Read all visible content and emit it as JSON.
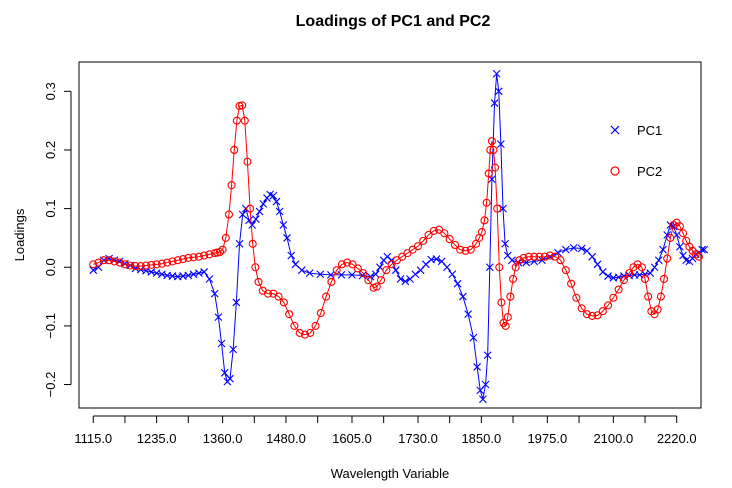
{
  "chart_data": {
    "type": "line",
    "title": "Loadings of PC1 and PC2",
    "xlabel": "Wavelength Variable",
    "ylabel": "Loadings",
    "xlim": [
      1088,
      2266
    ],
    "ylim": [
      -0.24,
      0.35
    ],
    "x_ticks": [
      1115,
      1175,
      1235,
      1295,
      1360,
      1420,
      1480,
      1540,
      1605,
      1665,
      1730,
      1790,
      1850,
      1910,
      1975,
      2035,
      2100,
      2160,
      2220
    ],
    "x_tick_labels": [
      "1115.0",
      "",
      "1235.0",
      "",
      "1360.0",
      "",
      "1480.0",
      "",
      "1605.0",
      "",
      "1730.0",
      "",
      "1850.0",
      "",
      "1975.0",
      "",
      "2100.0",
      "",
      "2220.0"
    ],
    "y_ticks": [
      -0.2,
      -0.1,
      0.0,
      0.1,
      0.2,
      0.3
    ],
    "y_tick_labels": [
      "−0.2",
      "−0.1",
      "0.0",
      "0.1",
      "0.2",
      "0.3"
    ],
    "legend": {
      "position": "top-right",
      "entries": [
        "PC1",
        "PC2"
      ]
    },
    "series": [
      {
        "name": "PC1",
        "color": "#0000ff",
        "marker": "x",
        "points": [
          [
            1115,
            -0.005
          ],
          [
            1125,
            0.0
          ],
          [
            1135,
            0.012
          ],
          [
            1145,
            0.015
          ],
          [
            1155,
            0.012
          ],
          [
            1165,
            0.01
          ],
          [
            1175,
            0.006
          ],
          [
            1185,
            0.003
          ],
          [
            1195,
            -0.002
          ],
          [
            1205,
            -0.004
          ],
          [
            1215,
            -0.006
          ],
          [
            1225,
            -0.008
          ],
          [
            1235,
            -0.01
          ],
          [
            1245,
            -0.012
          ],
          [
            1255,
            -0.014
          ],
          [
            1265,
            -0.015
          ],
          [
            1275,
            -0.016
          ],
          [
            1285,
            -0.015
          ],
          [
            1295,
            -0.014
          ],
          [
            1305,
            -0.012
          ],
          [
            1315,
            -0.01
          ],
          [
            1325,
            -0.008
          ],
          [
            1335,
            -0.02
          ],
          [
            1345,
            -0.045
          ],
          [
            1352,
            -0.085
          ],
          [
            1358,
            -0.13
          ],
          [
            1364,
            -0.18
          ],
          [
            1369,
            -0.195
          ],
          [
            1374,
            -0.19
          ],
          [
            1380,
            -0.14
          ],
          [
            1386,
            -0.06
          ],
          [
            1392,
            0.04
          ],
          [
            1398,
            0.09
          ],
          [
            1404,
            0.1
          ],
          [
            1410,
            0.08
          ],
          [
            1416,
            0.072
          ],
          [
            1423,
            0.082
          ],
          [
            1430,
            0.095
          ],
          [
            1437,
            0.108
          ],
          [
            1444,
            0.118
          ],
          [
            1450,
            0.124
          ],
          [
            1456,
            0.122
          ],
          [
            1462,
            0.112
          ],
          [
            1468,
            0.095
          ],
          [
            1475,
            0.072
          ],
          [
            1482,
            0.05
          ],
          [
            1490,
            0.02
          ],
          [
            1498,
            0.005
          ],
          [
            1510,
            -0.005
          ],
          [
            1525,
            -0.01
          ],
          [
            1545,
            -0.012
          ],
          [
            1565,
            -0.013
          ],
          [
            1585,
            -0.013
          ],
          [
            1605,
            -0.013
          ],
          [
            1625,
            -0.014
          ],
          [
            1640,
            -0.016
          ],
          [
            1650,
            -0.012
          ],
          [
            1658,
            0.0
          ],
          [
            1665,
            0.012
          ],
          [
            1672,
            0.018
          ],
          [
            1680,
            0.012
          ],
          [
            1688,
            -0.005
          ],
          [
            1697,
            -0.02
          ],
          [
            1706,
            -0.024
          ],
          [
            1715,
            -0.02
          ],
          [
            1725,
            -0.012
          ],
          [
            1735,
            -0.005
          ],
          [
            1745,
            0.005
          ],
          [
            1755,
            0.013
          ],
          [
            1765,
            0.014
          ],
          [
            1775,
            0.01
          ],
          [
            1785,
            0.0
          ],
          [
            1795,
            -0.012
          ],
          [
            1805,
            -0.028
          ],
          [
            1815,
            -0.05
          ],
          [
            1825,
            -0.08
          ],
          [
            1835,
            -0.12
          ],
          [
            1842,
            -0.17
          ],
          [
            1848,
            -0.21
          ],
          [
            1853,
            -0.225
          ],
          [
            1858,
            -0.2
          ],
          [
            1862,
            -0.15
          ],
          [
            1866,
            0.0
          ],
          [
            1870,
            0.15
          ],
          [
            1875,
            0.28
          ],
          [
            1879,
            0.33
          ],
          [
            1883,
            0.3
          ],
          [
            1887,
            0.21
          ],
          [
            1891,
            0.1
          ],
          [
            1895,
            0.04
          ],
          [
            1900,
            0.02
          ],
          [
            1908,
            0.012
          ],
          [
            1920,
            0.008
          ],
          [
            1935,
            0.008
          ],
          [
            1950,
            0.01
          ],
          [
            1965,
            0.012
          ],
          [
            1980,
            0.018
          ],
          [
            1995,
            0.025
          ],
          [
            2010,
            0.03
          ],
          [
            2025,
            0.033
          ],
          [
            2040,
            0.032
          ],
          [
            2050,
            0.028
          ],
          [
            2060,
            0.018
          ],
          [
            2070,
            0.005
          ],
          [
            2080,
            -0.008
          ],
          [
            2090,
            -0.015
          ],
          [
            2100,
            -0.018
          ],
          [
            2110,
            -0.017
          ],
          [
            2120,
            -0.015
          ],
          [
            2130,
            -0.014
          ],
          [
            2140,
            -0.013
          ],
          [
            2150,
            -0.013
          ],
          [
            2160,
            -0.012
          ],
          [
            2170,
            -0.01
          ],
          [
            2178,
            0.0
          ],
          [
            2186,
            0.012
          ],
          [
            2194,
            0.03
          ],
          [
            2202,
            0.055
          ],
          [
            2208,
            0.072
          ],
          [
            2214,
            0.07
          ],
          [
            2220,
            0.055
          ],
          [
            2226,
            0.035
          ],
          [
            2232,
            0.02
          ],
          [
            2238,
            0.012
          ],
          [
            2244,
            0.01
          ],
          [
            2250,
            0.015
          ],
          [
            2256,
            0.022
          ],
          [
            2262,
            0.025
          ],
          [
            2268,
            0.03
          ],
          [
            2272,
            0.03
          ]
        ]
      },
      {
        "name": "PC2",
        "color": "#ff0000",
        "marker": "o",
        "points": [
          [
            1115,
            0.005
          ],
          [
            1125,
            0.008
          ],
          [
            1135,
            0.012
          ],
          [
            1145,
            0.012
          ],
          [
            1155,
            0.01
          ],
          [
            1165,
            0.008
          ],
          [
            1175,
            0.005
          ],
          [
            1185,
            0.003
          ],
          [
            1195,
            0.002
          ],
          [
            1205,
            0.002
          ],
          [
            1215,
            0.003
          ],
          [
            1225,
            0.004
          ],
          [
            1235,
            0.005
          ],
          [
            1245,
            0.006
          ],
          [
            1255,
            0.008
          ],
          [
            1265,
            0.01
          ],
          [
            1275,
            0.012
          ],
          [
            1285,
            0.014
          ],
          [
            1295,
            0.016
          ],
          [
            1305,
            0.017
          ],
          [
            1315,
            0.018
          ],
          [
            1325,
            0.02
          ],
          [
            1335,
            0.022
          ],
          [
            1345,
            0.024
          ],
          [
            1350,
            0.025
          ],
          [
            1355,
            0.026
          ],
          [
            1360,
            0.03
          ],
          [
            1366,
            0.05
          ],
          [
            1372,
            0.09
          ],
          [
            1377,
            0.14
          ],
          [
            1382,
            0.2
          ],
          [
            1387,
            0.25
          ],
          [
            1392,
            0.275
          ],
          [
            1397,
            0.276
          ],
          [
            1402,
            0.25
          ],
          [
            1407,
            0.18
          ],
          [
            1412,
            0.1
          ],
          [
            1417,
            0.04
          ],
          [
            1422,
            0.0
          ],
          [
            1428,
            -0.025
          ],
          [
            1436,
            -0.04
          ],
          [
            1446,
            -0.045
          ],
          [
            1456,
            -0.045
          ],
          [
            1466,
            -0.05
          ],
          [
            1476,
            -0.06
          ],
          [
            1486,
            -0.08
          ],
          [
            1496,
            -0.1
          ],
          [
            1506,
            -0.112
          ],
          [
            1516,
            -0.115
          ],
          [
            1526,
            -0.112
          ],
          [
            1536,
            -0.1
          ],
          [
            1546,
            -0.078
          ],
          [
            1556,
            -0.05
          ],
          [
            1566,
            -0.025
          ],
          [
            1576,
            -0.005
          ],
          [
            1586,
            0.005
          ],
          [
            1596,
            0.008
          ],
          [
            1606,
            0.005
          ],
          [
            1616,
            -0.002
          ],
          [
            1626,
            -0.01
          ],
          [
            1636,
            -0.022
          ],
          [
            1646,
            -0.035
          ],
          [
            1652,
            -0.033
          ],
          [
            1660,
            -0.022
          ],
          [
            1670,
            -0.005
          ],
          [
            1680,
            0.005
          ],
          [
            1690,
            0.012
          ],
          [
            1700,
            0.018
          ],
          [
            1710,
            0.024
          ],
          [
            1720,
            0.03
          ],
          [
            1730,
            0.036
          ],
          [
            1740,
            0.045
          ],
          [
            1750,
            0.055
          ],
          [
            1760,
            0.062
          ],
          [
            1770,
            0.064
          ],
          [
            1780,
            0.058
          ],
          [
            1790,
            0.048
          ],
          [
            1800,
            0.038
          ],
          [
            1810,
            0.03
          ],
          [
            1820,
            0.028
          ],
          [
            1830,
            0.03
          ],
          [
            1840,
            0.04
          ],
          [
            1846,
            0.05
          ],
          [
            1851,
            0.06
          ],
          [
            1856,
            0.08
          ],
          [
            1860,
            0.11
          ],
          [
            1864,
            0.16
          ],
          [
            1867,
            0.2
          ],
          [
            1870,
            0.215
          ],
          [
            1873,
            0.2
          ],
          [
            1876,
            0.17
          ],
          [
            1880,
            0.1
          ],
          [
            1884,
            0.0
          ],
          [
            1888,
            -0.06
          ],
          [
            1892,
            -0.095
          ],
          [
            1896,
            -0.1
          ],
          [
            1900,
            -0.085
          ],
          [
            1905,
            -0.05
          ],
          [
            1910,
            -0.02
          ],
          [
            1915,
            0.0
          ],
          [
            1922,
            0.012
          ],
          [
            1930,
            0.016
          ],
          [
            1940,
            0.018
          ],
          [
            1950,
            0.018
          ],
          [
            1960,
            0.018
          ],
          [
            1970,
            0.018
          ],
          [
            1980,
            0.02
          ],
          [
            1990,
            0.018
          ],
          [
            2000,
            0.012
          ],
          [
            2010,
            -0.005
          ],
          [
            2020,
            -0.028
          ],
          [
            2030,
            -0.052
          ],
          [
            2040,
            -0.07
          ],
          [
            2050,
            -0.08
          ],
          [
            2060,
            -0.083
          ],
          [
            2070,
            -0.082
          ],
          [
            2080,
            -0.075
          ],
          [
            2090,
            -0.065
          ],
          [
            2100,
            -0.052
          ],
          [
            2110,
            -0.038
          ],
          [
            2120,
            -0.022
          ],
          [
            2130,
            -0.01
          ],
          [
            2138,
            0.0
          ],
          [
            2146,
            0.005
          ],
          [
            2154,
            0.0
          ],
          [
            2160,
            -0.02
          ],
          [
            2166,
            -0.05
          ],
          [
            2172,
            -0.075
          ],
          [
            2178,
            -0.08
          ],
          [
            2184,
            -0.072
          ],
          [
            2190,
            -0.05
          ],
          [
            2196,
            -0.02
          ],
          [
            2202,
            0.015
          ],
          [
            2208,
            0.05
          ],
          [
            2214,
            0.072
          ],
          [
            2220,
            0.076
          ],
          [
            2226,
            0.07
          ],
          [
            2232,
            0.058
          ],
          [
            2238,
            0.045
          ],
          [
            2244,
            0.035
          ],
          [
            2250,
            0.028
          ],
          [
            2256,
            0.022
          ],
          [
            2262,
            0.018
          ]
        ]
      }
    ]
  }
}
